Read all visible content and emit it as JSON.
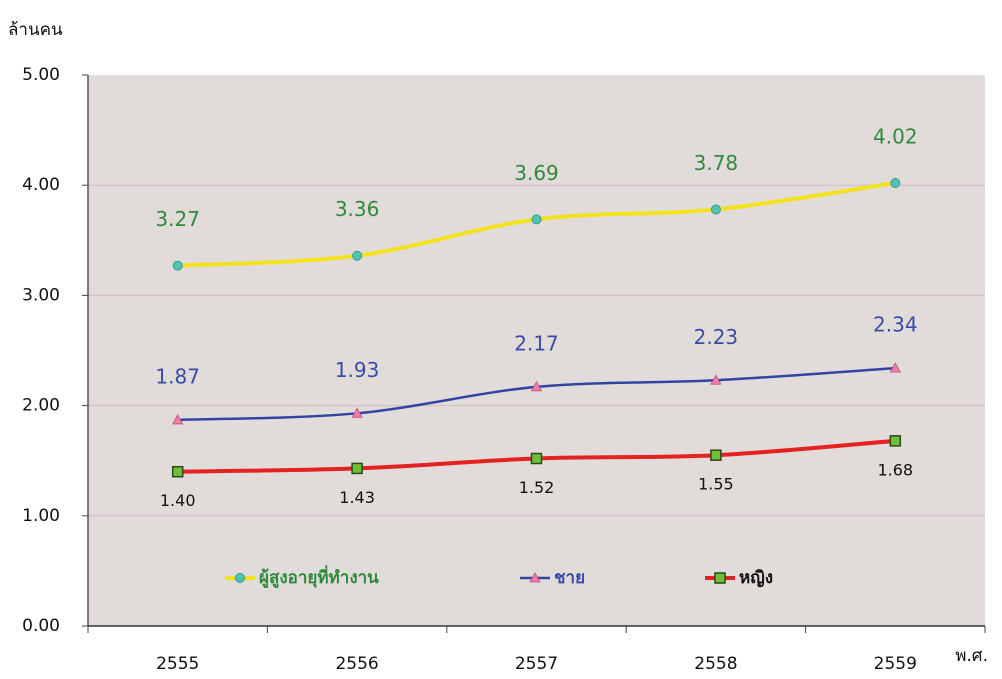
{
  "chart_data": {
    "type": "line",
    "y_label": "ล้านคน",
    "x_label": "พ.ศ.",
    "categories": [
      "2555",
      "2556",
      "2557",
      "2558",
      "2559"
    ],
    "series": [
      {
        "name": "ผู้สูงอายุที่ทำงาน",
        "color": "#f2e21e",
        "marker": "circle",
        "marker_color": "#4fc3b6",
        "label_color": "#2f8a3c",
        "values": [
          3.27,
          3.36,
          3.69,
          3.78,
          4.02
        ],
        "value_labels": [
          "3.27",
          "3.36",
          "3.69",
          "3.78",
          "4.02"
        ]
      },
      {
        "name": "ชาย",
        "color": "#3344a0",
        "marker": "triangle",
        "marker_color": "#f07ca8",
        "label_color": "#3a4aa8",
        "values": [
          1.87,
          1.93,
          2.17,
          2.23,
          2.34
        ],
        "value_labels": [
          "1.87",
          "1.93",
          "2.17",
          "2.23",
          "2.34"
        ]
      },
      {
        "name": "หญิง",
        "color": "#e42222",
        "marker": "square",
        "marker_color": "#6fbf3a",
        "label_color": "#111111",
        "values": [
          1.4,
          1.43,
          1.52,
          1.55,
          1.68
        ],
        "value_labels": [
          "1.40",
          "1.43",
          "1.52",
          "1.55",
          "1.68"
        ]
      }
    ],
    "ylim": [
      0,
      5
    ],
    "yticks": [
      {
        "value": 0,
        "label": "0.00"
      },
      {
        "value": 1,
        "label": "1.00"
      },
      {
        "value": 2,
        "label": "2.00"
      },
      {
        "value": 3,
        "label": "3.00"
      },
      {
        "value": 4,
        "label": "4.00"
      },
      {
        "value": 5,
        "label": "5.00"
      }
    ],
    "grid": true
  }
}
